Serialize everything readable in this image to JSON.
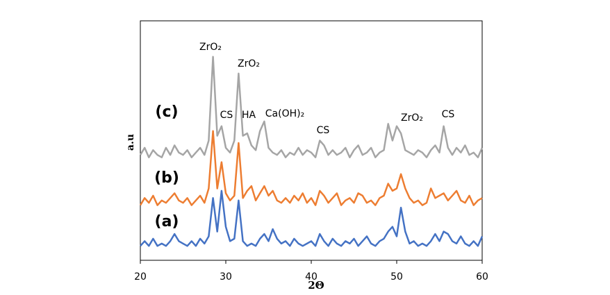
{
  "chart_data": {
    "type": "line",
    "xlabel": "2Θ",
    "ylabel": "a.u",
    "xlim": [
      20,
      60
    ],
    "xticks": [
      20,
      30,
      40,
      50,
      60
    ],
    "ylim": [
      0,
      100
    ],
    "annotations": [
      "ZrO₂",
      "ZrO₂",
      "CS",
      "HA",
      "Ca(OH)₂",
      "CS",
      "ZrO₂",
      "CS"
    ],
    "x": [
      20,
      20.5,
      21,
      21.5,
      22,
      22.5,
      23,
      23.5,
      24,
      24.5,
      25,
      25.5,
      26,
      26.5,
      27,
      27.5,
      28,
      28.5,
      29,
      29.5,
      30,
      30.5,
      31,
      31.5,
      32,
      32.5,
      33,
      33.5,
      34,
      34.5,
      35,
      35.5,
      36,
      36.5,
      37,
      37.5,
      38,
      38.5,
      39,
      39.5,
      40,
      40.5,
      41,
      41.5,
      42,
      42.5,
      43,
      43.5,
      44,
      44.5,
      45,
      45.5,
      46,
      46.5,
      47,
      47.5,
      48,
      48.5,
      49,
      49.5,
      50,
      50.5,
      51,
      51.5,
      52,
      52.5,
      53,
      53.5,
      54,
      54.5,
      55,
      55.5,
      56,
      56.5,
      57,
      57.5,
      58,
      58.5,
      59,
      59.5,
      60
    ],
    "series": [
      {
        "name": "(a)",
        "color": "#4472c4",
        "values": [
          6,
          8,
          6,
          9,
          6,
          7,
          6,
          8,
          11,
          8,
          7,
          6,
          8,
          6,
          9,
          7,
          10,
          26,
          12,
          29,
          14,
          8,
          9,
          25,
          8,
          6,
          7,
          6,
          9,
          11,
          8,
          13,
          9,
          7,
          8,
          6,
          9,
          7,
          6,
          7,
          8,
          6,
          11,
          8,
          6,
          9,
          7,
          6,
          8,
          7,
          9,
          6,
          8,
          10,
          7,
          6,
          8,
          9,
          12,
          14,
          10,
          22,
          12,
          7,
          8,
          6,
          7,
          6,
          8,
          11,
          8,
          12,
          11,
          8,
          7,
          10,
          7,
          6,
          8,
          6,
          10
        ]
      },
      {
        "name": "(b)",
        "color": "#ed7d31",
        "values": [
          23,
          26,
          24,
          27,
          23,
          25,
          24,
          26,
          28,
          25,
          24,
          26,
          23,
          25,
          27,
          24,
          30,
          54,
          30,
          41,
          28,
          25,
          27,
          49,
          26,
          29,
          31,
          25,
          28,
          31,
          27,
          29,
          25,
          24,
          26,
          24,
          27,
          25,
          28,
          24,
          26,
          23,
          29,
          27,
          24,
          26,
          28,
          23,
          25,
          26,
          24,
          28,
          27,
          24,
          25,
          23,
          26,
          27,
          32,
          29,
          30,
          36,
          30,
          26,
          24,
          25,
          23,
          24,
          30,
          26,
          27,
          28,
          25,
          27,
          29,
          25,
          24,
          27,
          23,
          25,
          26
        ]
      },
      {
        "name": "(c)",
        "color": "#a5a5a5",
        "values": [
          44,
          47,
          43,
          46,
          44,
          43,
          47,
          44,
          48,
          45,
          44,
          46,
          43,
          45,
          47,
          44,
          50,
          85,
          52,
          56,
          47,
          45,
          50,
          78,
          52,
          53,
          48,
          46,
          54,
          58,
          47,
          45,
          44,
          46,
          43,
          45,
          44,
          47,
          44,
          46,
          45,
          43,
          50,
          48,
          44,
          46,
          44,
          45,
          47,
          43,
          46,
          48,
          44,
          45,
          47,
          43,
          45,
          46,
          57,
          50,
          56,
          53,
          46,
          45,
          44,
          46,
          45,
          43,
          46,
          48,
          45,
          56,
          47,
          44,
          47,
          45,
          48,
          44,
          45,
          43,
          47
        ]
      }
    ]
  }
}
